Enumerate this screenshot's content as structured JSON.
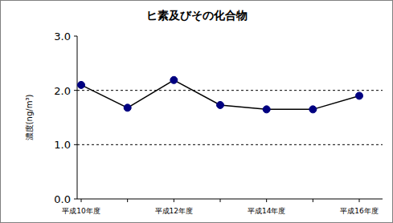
{
  "chart_data": {
    "type": "line",
    "title": "ヒ素及びその化合物",
    "y_label": "濃度(ng/m³)",
    "categories": [
      "平成10年度",
      null,
      "平成12年度",
      null,
      "平成14年度",
      null,
      "平成16年度"
    ],
    "values": [
      2.1,
      1.68,
      2.19,
      1.73,
      1.65,
      1.65,
      1.9
    ],
    "color": "#000080",
    "marker": "circle",
    "line_style": "solid",
    "ylim": [
      0,
      3
    ],
    "yticks": [
      {
        "value": 0,
        "label": "0.0"
      },
      {
        "value": 1,
        "label": "1.0"
      },
      {
        "value": 2,
        "label": "2.0"
      },
      {
        "value": 3,
        "label": "3.0"
      }
    ],
    "grid": true
  }
}
